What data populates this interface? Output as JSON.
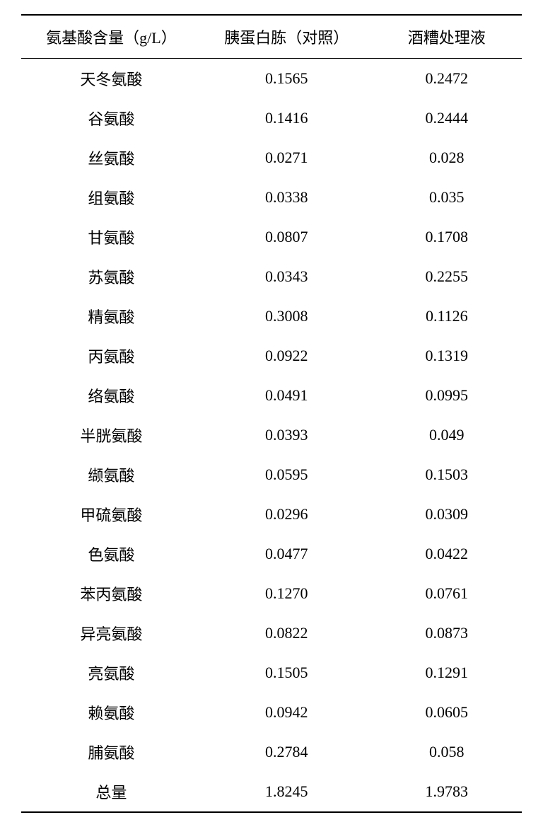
{
  "table": {
    "columns": [
      "氨基酸含量（g/L）",
      "胰蛋白胨（对照）",
      "酒糟处理液"
    ],
    "rows": [
      [
        "天冬氨酸",
        "0.1565",
        "0.2472"
      ],
      [
        "谷氨酸",
        "0.1416",
        "0.2444"
      ],
      [
        "丝氨酸",
        "0.0271",
        "0.028"
      ],
      [
        "组氨酸",
        "0.0338",
        "0.035"
      ],
      [
        "甘氨酸",
        "0.0807",
        "0.1708"
      ],
      [
        "苏氨酸",
        "0.0343",
        "0.2255"
      ],
      [
        "精氨酸",
        "0.3008",
        "0.1126"
      ],
      [
        "丙氨酸",
        "0.0922",
        "0.1319"
      ],
      [
        "络氨酸",
        "0.0491",
        "0.0995"
      ],
      [
        "半胱氨酸",
        "0.0393",
        "0.049"
      ],
      [
        "缬氨酸",
        "0.0595",
        "0.1503"
      ],
      [
        "甲硫氨酸",
        "0.0296",
        "0.0309"
      ],
      [
        "色氨酸",
        "0.0477",
        "0.0422"
      ],
      [
        "苯丙氨酸",
        "0.1270",
        "0.0761"
      ],
      [
        "异亮氨酸",
        "0.0822",
        "0.0873"
      ],
      [
        "亮氨酸",
        "0.1505",
        "0.1291"
      ],
      [
        "赖氨酸",
        "0.0942",
        "0.0605"
      ],
      [
        "脯氨酸",
        "0.2784",
        "0.058"
      ],
      [
        "总量",
        "1.8245",
        "1.9783"
      ]
    ],
    "styling": {
      "background_color": "#ffffff",
      "text_color": "#000000",
      "border_color": "#000000",
      "header_border_top_width": 2,
      "header_border_bottom_width": 1.5,
      "footer_border_bottom_width": 2,
      "font_size": 22,
      "font_family": "SimSun",
      "column_widths": [
        "36%",
        "34%",
        "30%"
      ],
      "cell_padding": "12px 8px",
      "header_padding": "14px 8px",
      "text_align": "center"
    }
  }
}
